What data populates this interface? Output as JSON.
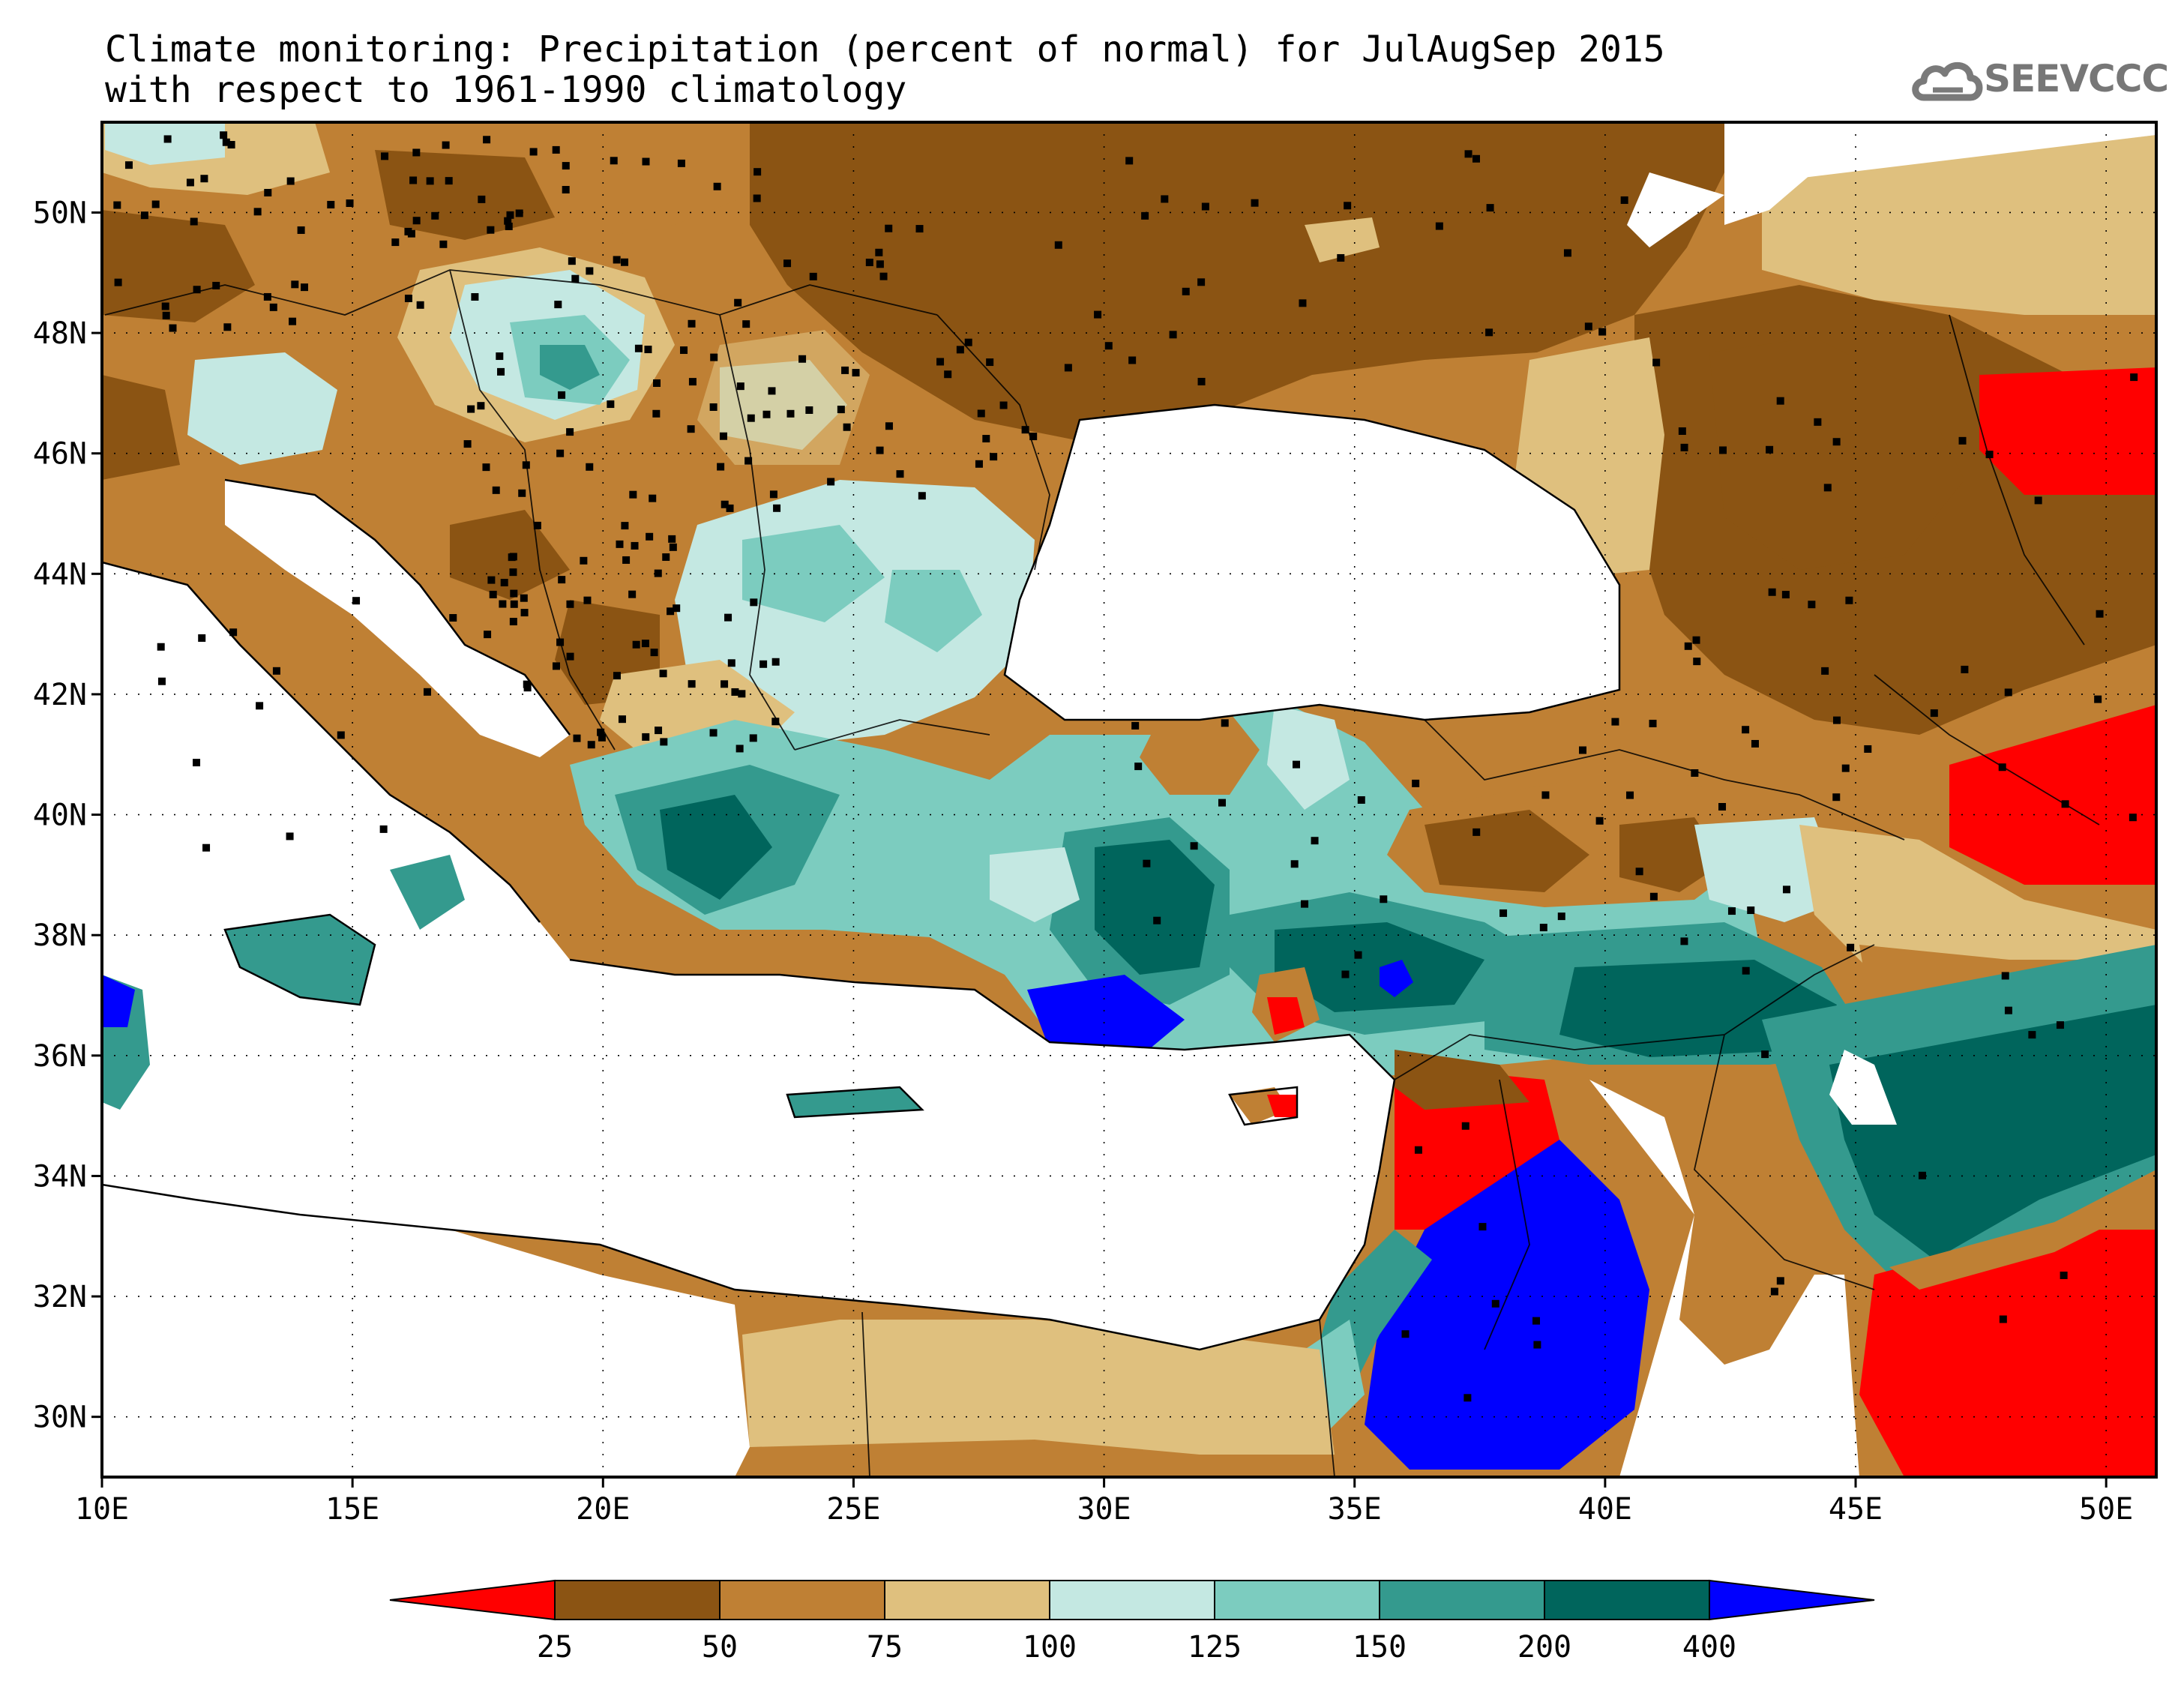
{
  "title": {
    "line1": "Climate monitoring: Precipitation (percent of normal) for JulAugSep 2015",
    "line2": "with respect to 1961-1990 climatology"
  },
  "logo": {
    "text": "SEEVCCC",
    "icon": "cloud-icon"
  },
  "map": {
    "lon_range": [
      10,
      51
    ],
    "lat_range": [
      29,
      51.5
    ],
    "lon_ticks": [
      {
        "value": 10,
        "label": "10E"
      },
      {
        "value": 15,
        "label": "15E"
      },
      {
        "value": 20,
        "label": "20E"
      },
      {
        "value": 25,
        "label": "25E"
      },
      {
        "value": 30,
        "label": "30E"
      },
      {
        "value": 35,
        "label": "35E"
      },
      {
        "value": 40,
        "label": "40E"
      },
      {
        "value": 45,
        "label": "45E"
      },
      {
        "value": 50,
        "label": "50E"
      }
    ],
    "lat_ticks": [
      {
        "value": 30,
        "label": "30N"
      },
      {
        "value": 32,
        "label": "32N"
      },
      {
        "value": 34,
        "label": "34N"
      },
      {
        "value": 36,
        "label": "36N"
      },
      {
        "value": 38,
        "label": "38N"
      },
      {
        "value": 40,
        "label": "40N"
      },
      {
        "value": 42,
        "label": "42N"
      },
      {
        "value": 44,
        "label": "44N"
      },
      {
        "value": 46,
        "label": "46N"
      },
      {
        "value": 48,
        "label": "48N"
      },
      {
        "value": 50,
        "label": "50N"
      }
    ]
  },
  "legend": {
    "colors": [
      "#ff0000",
      "#8b5413",
      "#bf8034",
      "#dfc07e",
      "#c4e8e2",
      "#7cccbf",
      "#349a8e",
      "#00655c",
      "#0000ff"
    ],
    "labels": [
      "25",
      "50",
      "75",
      "100",
      "125",
      "150",
      "200",
      "400"
    ]
  },
  "colors": {
    "lt25": "#ff0000",
    "c25_50": "#8b5413",
    "c50_75": "#bf8034",
    "c75_100": "#dfc07e",
    "c100_125": "#c4e8e2",
    "c125_150": "#7cccbf",
    "c150_200": "#349a8e",
    "c200_400": "#00655c",
    "gt400": "#0000ff"
  }
}
